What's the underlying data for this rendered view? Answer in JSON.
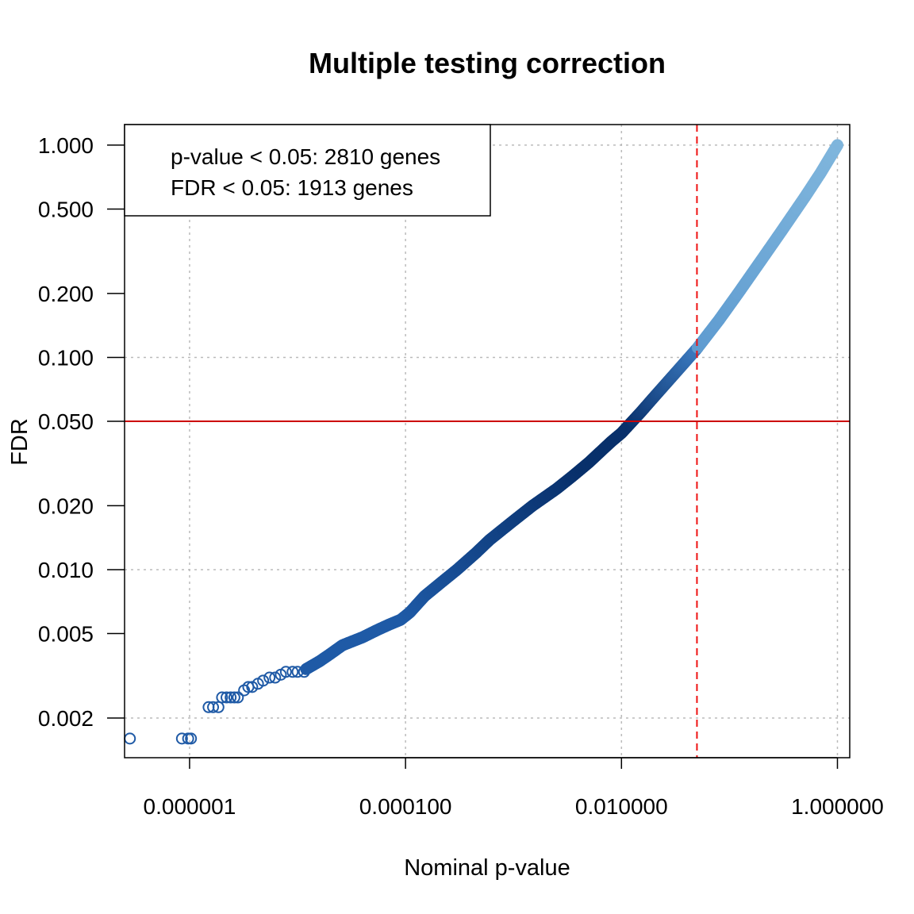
{
  "chart_data": {
    "type": "scatter",
    "title": "Multiple testing correction",
    "xlabel": "Nominal p-value",
    "ylabel": "FDR",
    "x_scale": "log",
    "y_scale": "log",
    "xlim": [
      2.5e-07,
      1.3
    ],
    "ylim": [
      0.0013,
      1.25
    ],
    "grid": true,
    "x_ticks": [
      {
        "value": 1e-06,
        "label": "0.000001"
      },
      {
        "value": 0.0001,
        "label": "0.000100"
      },
      {
        "value": 0.01,
        "label": "0.010000"
      },
      {
        "value": 1,
        "label": "1.000000"
      }
    ],
    "y_ticks": [
      {
        "value": 0.002,
        "label": "0.002"
      },
      {
        "value": 0.005,
        "label": "0.005"
      },
      {
        "value": 0.01,
        "label": "0.010"
      },
      {
        "value": 0.02,
        "label": "0.020"
      },
      {
        "value": 0.05,
        "label": "0.050"
      },
      {
        "value": 0.1,
        "label": "0.100"
      },
      {
        "value": 0.2,
        "label": "0.200"
      },
      {
        "value": 0.5,
        "label": "0.500"
      },
      {
        "value": 1,
        "label": "1.000"
      }
    ],
    "reference_lines": {
      "fdr_threshold": {
        "orientation": "horizontal",
        "value": 0.05,
        "color": "#cc0000",
        "style": "solid"
      },
      "p_threshold": {
        "orientation": "vertical",
        "value": 0.05,
        "color": "#ee1111",
        "style": "dashed"
      }
    },
    "colors": {
      "significant": "#08306b",
      "mid": "#1f5aa6",
      "nonsignificant": "#7fb5dc",
      "grid": "#bbbbbb"
    },
    "points_isolated": [
      [
        2.8e-07,
        0.0016
      ],
      [
        8.5e-07,
        0.0016
      ],
      [
        9.7e-07,
        0.0016
      ],
      [
        1.03e-06,
        0.0016
      ],
      [
        1.5e-06,
        0.00225
      ],
      [
        1.65e-06,
        0.00225
      ],
      [
        1.85e-06,
        0.00225
      ],
      [
        2e-06,
        0.0025
      ],
      [
        2.2e-06,
        0.0025
      ],
      [
        2.4e-06,
        0.0025
      ],
      [
        2.6e-06,
        0.0025
      ],
      [
        2.8e-06,
        0.0025
      ],
      [
        3.2e-06,
        0.0027
      ],
      [
        3.5e-06,
        0.0028
      ],
      [
        3.8e-06,
        0.0028
      ],
      [
        4.3e-06,
        0.0029
      ],
      [
        4.8e-06,
        0.003
      ],
      [
        5.5e-06,
        0.0031
      ],
      [
        6.2e-06,
        0.0031
      ],
      [
        7e-06,
        0.0032
      ],
      [
        7.8e-06,
        0.0033
      ],
      [
        9e-06,
        0.0033
      ],
      [
        1e-05,
        0.0033
      ],
      [
        1.15e-05,
        0.0033
      ]
    ],
    "curve": [
      [
        1.2e-05,
        0.0034
      ],
      [
        1.6e-05,
        0.0037
      ],
      [
        2e-05,
        0.004
      ],
      [
        2.6e-05,
        0.0044
      ],
      [
        4e-05,
        0.0048
      ],
      [
        5.5e-05,
        0.0052
      ],
      [
        7e-05,
        0.0055
      ],
      [
        9e-05,
        0.0058
      ],
      [
        0.00011,
        0.0063
      ],
      [
        0.00015,
        0.0075
      ],
      [
        0.00022,
        0.0088
      ],
      [
        0.0003,
        0.01
      ],
      [
        0.00045,
        0.012
      ],
      [
        0.0006,
        0.0138
      ],
      [
        0.001,
        0.017
      ],
      [
        0.0015,
        0.02
      ],
      [
        0.0025,
        0.024
      ],
      [
        0.0035,
        0.0275
      ],
      [
        0.005,
        0.032
      ],
      [
        0.008,
        0.04
      ],
      [
        0.01,
        0.044
      ],
      [
        0.015,
        0.055
      ],
      [
        0.02,
        0.065
      ],
      [
        0.03,
        0.082
      ],
      [
        0.05,
        0.11
      ],
      [
        0.08,
        0.15
      ],
      [
        0.12,
        0.2
      ],
      [
        0.2,
        0.29
      ],
      [
        0.3,
        0.39
      ],
      [
        0.5,
        0.57
      ],
      [
        0.7,
        0.74
      ],
      [
        1.0,
        1.0
      ]
    ]
  },
  "legend": {
    "line1": "p-value < 0.05: 2810 genes",
    "line2": "FDR < 0.05: 1913 genes",
    "position": "top-left"
  }
}
